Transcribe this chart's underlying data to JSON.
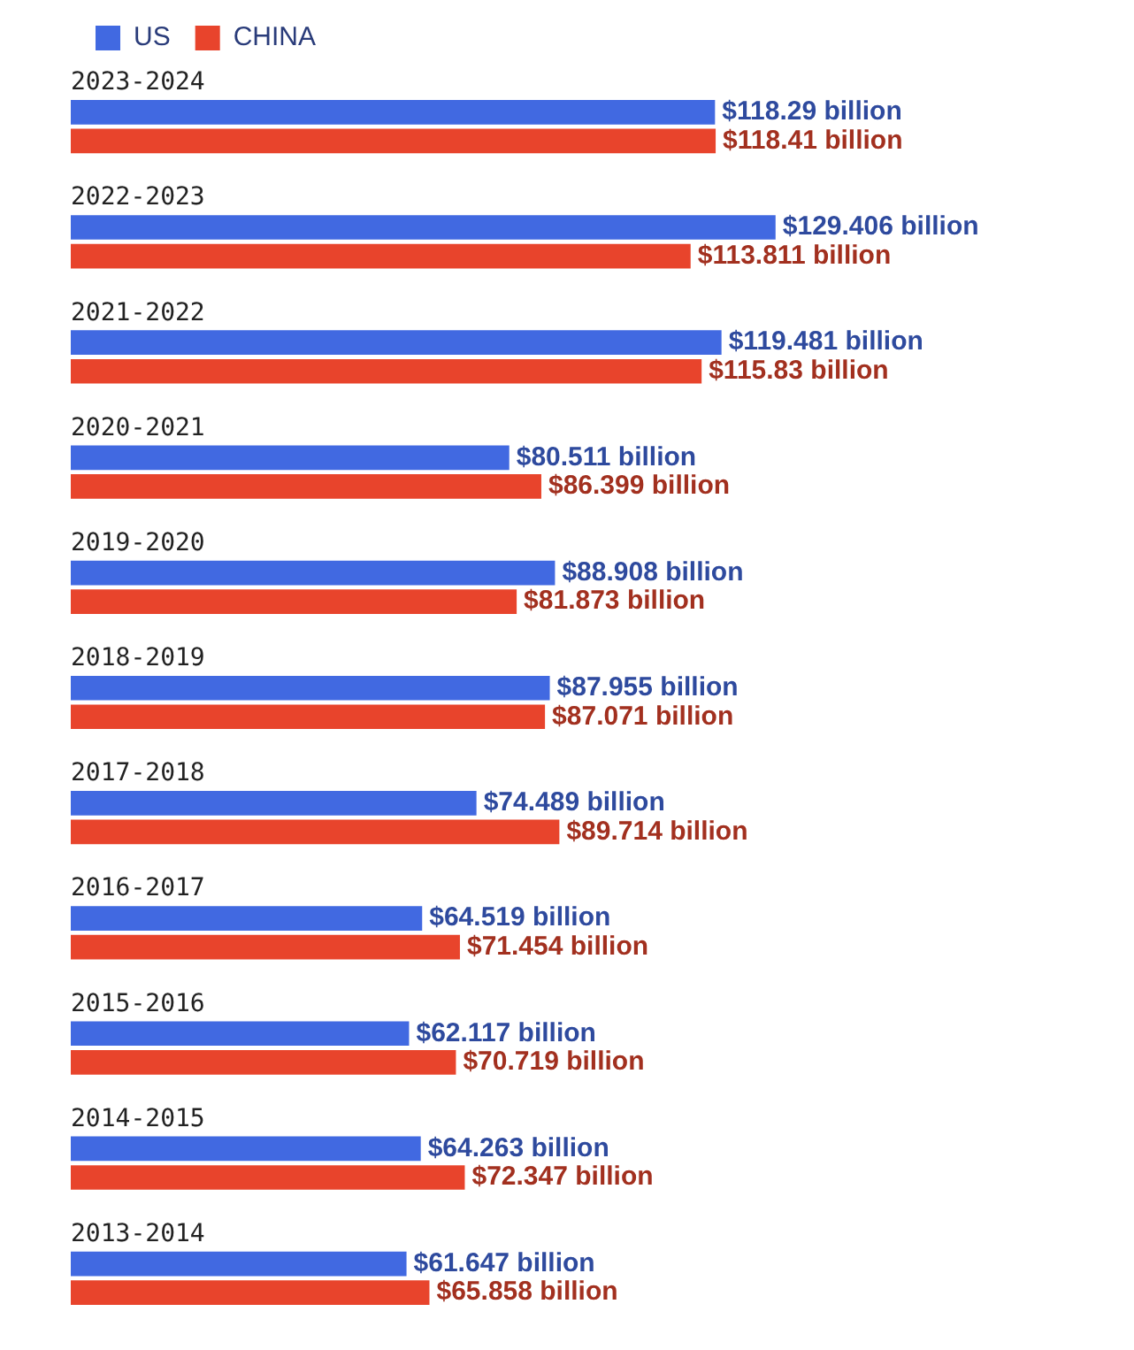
{
  "chart_data": {
    "type": "bar",
    "orientation": "horizontal",
    "legend": "top left",
    "tick_labels": false,
    "categories": [
      "2023-2024",
      "2022-2023",
      "2021-2022",
      "2020-2021",
      "2019-2020",
      "2018-2019",
      "2017-2018",
      "2016-2017",
      "2015-2016",
      "2014-2015",
      "2013-2014"
    ],
    "series": [
      {
        "name": "US",
        "color": "#4169e1",
        "values": [
          118.29,
          129.406,
          119.481,
          80.511,
          88.908,
          87.955,
          74.489,
          64.519,
          62.117,
          64.263,
          61.647
        ],
        "value_labels": [
          "$118.29 billion",
          "$129.406 billion",
          "$119.481 billion",
          "$80.511 billion",
          "$88.908 billion",
          "$87.955 billion",
          "$74.489 billion",
          "$64.519 billion",
          "$62.117 billion",
          "$64.263 billion",
          "$61.647 billion"
        ]
      },
      {
        "name": "CHINA",
        "color": "#e8442c",
        "values": [
          118.41,
          113.811,
          115.83,
          86.399,
          81.873,
          87.071,
          89.714,
          71.454,
          70.719,
          72.347,
          65.858
        ],
        "value_labels": [
          "$118.41 billion",
          "$113.811 billion",
          "$115.83 billion",
          "$86.399 billion",
          "$81.873 billion",
          "$87.071 billion",
          "$89.714 billion",
          "$71.454 billion",
          "$70.719 billion",
          "$72.347 billion",
          "$65.858 billion"
        ]
      }
    ]
  }
}
